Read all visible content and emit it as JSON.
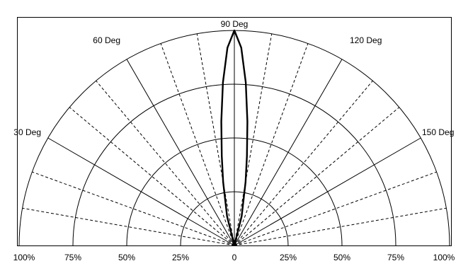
{
  "chart_data": {
    "type": "line",
    "subtype": "polar-half",
    "title": "",
    "angle_range_deg": [
      0,
      180
    ],
    "angle_tick_labels": [
      {
        "deg": 30,
        "label": "30 Deg"
      },
      {
        "deg": 60,
        "label": "60 Deg"
      },
      {
        "deg": 90,
        "label": "90 Deg"
      },
      {
        "deg": 120,
        "label": "120 Deg"
      },
      {
        "deg": 150,
        "label": "150 Deg"
      }
    ],
    "major_spokes_deg": [
      30,
      60,
      90,
      120,
      150
    ],
    "minor_spokes_deg": [
      10,
      20,
      40,
      50,
      70,
      80,
      100,
      110,
      130,
      140,
      160,
      170
    ],
    "radius_range_pct": [
      0,
      100
    ],
    "radius_rings_pct": [
      25,
      50,
      75,
      100
    ],
    "radius_tick_labels": [
      {
        "side": "left",
        "pct": 100,
        "label": "100%"
      },
      {
        "side": "left",
        "pct": 75,
        "label": "75%"
      },
      {
        "side": "left",
        "pct": 50,
        "label": "50%"
      },
      {
        "side": "left",
        "pct": 25,
        "label": "25%"
      },
      {
        "side": "center",
        "pct": 0,
        "label": "0"
      },
      {
        "side": "right",
        "pct": 25,
        "label": "25%"
      },
      {
        "side": "right",
        "pct": 50,
        "label": "50%"
      },
      {
        "side": "right",
        "pct": 75,
        "label": "75%"
      },
      {
        "side": "right",
        "pct": 100,
        "label": "100%"
      }
    ],
    "grid": true,
    "legend": "none",
    "series": [
      {
        "color": "#000000",
        "angle_deg": [
          0,
          70,
          76,
          80,
          82,
          84,
          86,
          88,
          90,
          92,
          94,
          96,
          98,
          100,
          104,
          110,
          180
        ],
        "r_pct": [
          0,
          0,
          14,
          30,
          42,
          58,
          76,
          92,
          100,
          92,
          76,
          58,
          42,
          30,
          14,
          0,
          0
        ]
      }
    ]
  }
}
